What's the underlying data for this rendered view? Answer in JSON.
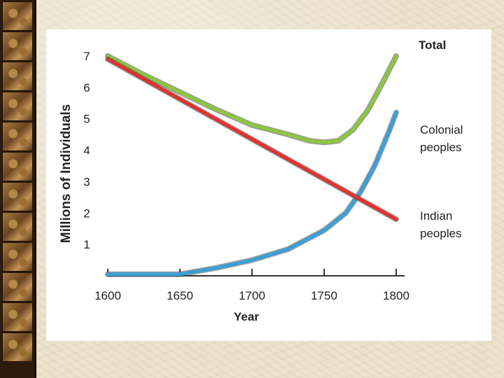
{
  "chart_data": {
    "type": "line",
    "title": "",
    "xlabel": "Year",
    "ylabel": "Millions of Individuals",
    "xlim": [
      1600,
      1800
    ],
    "ylim": [
      0,
      7
    ],
    "x_ticks": [
      "1600",
      "1650",
      "1700",
      "1750",
      "1800"
    ],
    "y_ticks": [
      "1",
      "2",
      "3",
      "4",
      "5",
      "6",
      "7"
    ],
    "series": [
      {
        "name": "Total",
        "color": "#8cc63f",
        "points": [
          [
            1600,
            7.0
          ],
          [
            1625,
            6.4
          ],
          [
            1650,
            5.85
          ],
          [
            1675,
            5.3
          ],
          [
            1700,
            4.8
          ],
          [
            1725,
            4.5
          ],
          [
            1740,
            4.3
          ],
          [
            1750,
            4.25
          ],
          [
            1760,
            4.3
          ],
          [
            1770,
            4.65
          ],
          [
            1780,
            5.25
          ],
          [
            1790,
            6.1
          ],
          [
            1800,
            7.0
          ]
        ]
      },
      {
        "name": "Colonial peoples",
        "color": "#3b9fd8",
        "points": [
          [
            1600,
            0.05
          ],
          [
            1650,
            0.05
          ],
          [
            1675,
            0.25
          ],
          [
            1700,
            0.5
          ],
          [
            1725,
            0.85
          ],
          [
            1750,
            1.45
          ],
          [
            1765,
            2.0
          ],
          [
            1775,
            2.65
          ],
          [
            1785,
            3.5
          ],
          [
            1795,
            4.6
          ],
          [
            1800,
            5.2
          ]
        ]
      },
      {
        "name": "Indian peoples",
        "color": "#e0322d",
        "points": [
          [
            1600,
            6.9
          ],
          [
            1800,
            1.8
          ]
        ]
      }
    ],
    "legend_position": "right"
  },
  "colors": {
    "total": "#8cc63f",
    "colonial": "#3b9fd8",
    "indian": "#e0322d",
    "outline": "#4a4a4a"
  }
}
